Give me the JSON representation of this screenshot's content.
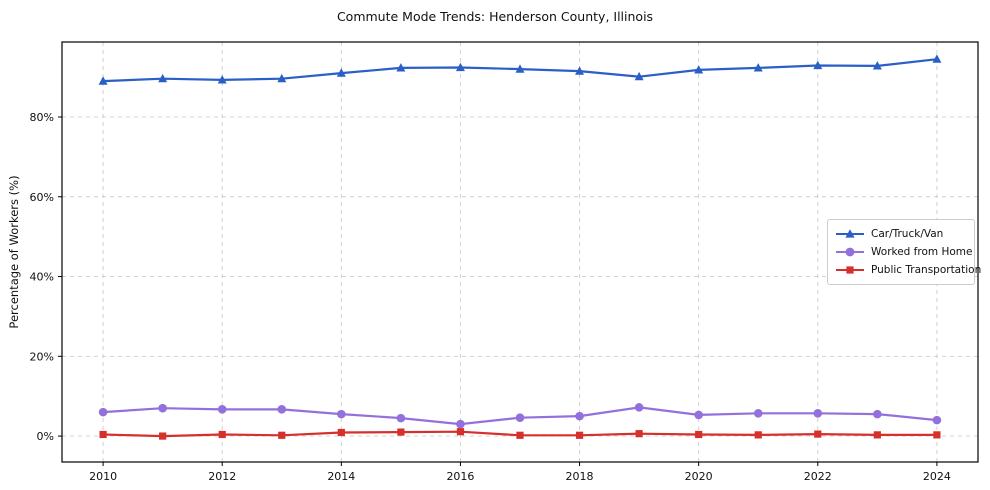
{
  "chart_data": {
    "type": "line",
    "title": "Commute Mode Trends: Henderson County, Illinois",
    "xlabel": "",
    "ylabel": "Percentage of Workers (%)",
    "x": [
      2010,
      2011,
      2012,
      2013,
      2014,
      2015,
      2016,
      2017,
      2018,
      2019,
      2020,
      2021,
      2022,
      2023,
      2024
    ],
    "series": [
      {
        "name": "Car/Truck/Van",
        "color": "#2a5fc7",
        "marker": "triangle",
        "values": [
          89.0,
          89.6,
          89.3,
          89.6,
          91.0,
          92.3,
          92.4,
          92.0,
          91.5,
          90.1,
          91.8,
          92.3,
          92.9,
          92.8,
          94.5
        ]
      },
      {
        "name": "Worked from Home",
        "color": "#9370DB",
        "marker": "circle",
        "values": [
          6.0,
          7.0,
          6.7,
          6.7,
          5.5,
          4.5,
          3.0,
          4.6,
          5.0,
          7.2,
          5.3,
          5.7,
          5.7,
          5.5,
          4.0
        ]
      },
      {
        "name": "Public Transportation",
        "color": "#d6302c",
        "marker": "square",
        "values": [
          0.4,
          0.0,
          0.4,
          0.2,
          0.9,
          1.0,
          1.1,
          0.2,
          0.2,
          0.6,
          0.4,
          0.3,
          0.5,
          0.3,
          0.3
        ]
      }
    ],
    "xticks": [
      2010,
      2012,
      2014,
      2016,
      2018,
      2020,
      2022,
      2024
    ],
    "yticks": [
      0,
      20,
      40,
      60,
      80
    ],
    "ytick_suffix": "%",
    "xlim": [
      2009.31,
      2024.69
    ],
    "ylim": [
      -6.5,
      98.8
    ],
    "grid": true,
    "grid_style": "dashed",
    "legend_position": "center right"
  }
}
